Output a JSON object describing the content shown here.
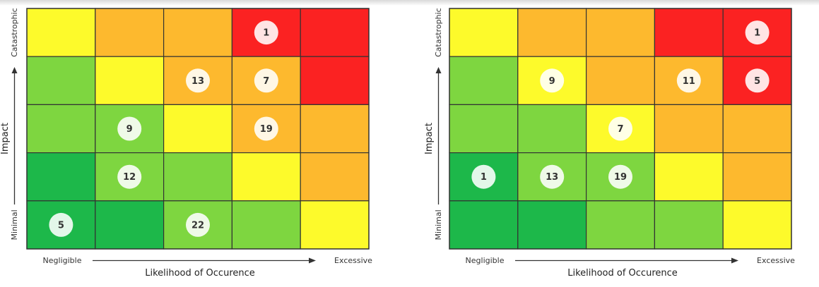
{
  "colors": {
    "dark_green": "#1db84a",
    "green": "#7ed640",
    "yellow": "#fdfa2b",
    "orange": "#fdb92e",
    "red": "#fb2222"
  },
  "chart_data": [
    {
      "type": "heatmap",
      "title": "",
      "xlabel": "Likelihood of Occurence",
      "ylabel": "Impact",
      "x_start_label": "Negligible",
      "x_end_label": "Excessive",
      "y_top_label": "Catastrophic",
      "y_bottom_label": "Minimal",
      "grid_colors": [
        [
          "yellow",
          "orange",
          "orange",
          "red",
          "red"
        ],
        [
          "green",
          "yellow",
          "orange",
          "orange",
          "red"
        ],
        [
          "green",
          "green",
          "yellow",
          "orange",
          "orange"
        ],
        [
          "dark_green",
          "green",
          "green",
          "yellow",
          "orange"
        ],
        [
          "dark_green",
          "dark_green",
          "green",
          "green",
          "yellow"
        ]
      ],
      "badges": [
        {
          "row": 0,
          "col": 3,
          "value": "1"
        },
        {
          "row": 1,
          "col": 2,
          "value": "13"
        },
        {
          "row": 1,
          "col": 3,
          "value": "7"
        },
        {
          "row": 2,
          "col": 1,
          "value": "9"
        },
        {
          "row": 2,
          "col": 3,
          "value": "19"
        },
        {
          "row": 3,
          "col": 1,
          "value": "12"
        },
        {
          "row": 4,
          "col": 0,
          "value": "5"
        },
        {
          "row": 4,
          "col": 2,
          "value": "22"
        }
      ]
    },
    {
      "type": "heatmap",
      "title": "",
      "xlabel": "Likelihood of Occurence",
      "ylabel": "Impact",
      "x_start_label": "Negligible",
      "x_end_label": "Excessive",
      "y_top_label": "Catastrophic",
      "y_bottom_label": "Minimal",
      "grid_colors": [
        [
          "yellow",
          "orange",
          "orange",
          "red",
          "red"
        ],
        [
          "green",
          "yellow",
          "orange",
          "orange",
          "red"
        ],
        [
          "green",
          "green",
          "yellow",
          "orange",
          "orange"
        ],
        [
          "dark_green",
          "green",
          "green",
          "yellow",
          "orange"
        ],
        [
          "dark_green",
          "dark_green",
          "green",
          "green",
          "yellow"
        ]
      ],
      "badges": [
        {
          "row": 0,
          "col": 4,
          "value": "1"
        },
        {
          "row": 1,
          "col": 1,
          "value": "9"
        },
        {
          "row": 1,
          "col": 3,
          "value": "11"
        },
        {
          "row": 1,
          "col": 4,
          "value": "5"
        },
        {
          "row": 2,
          "col": 2,
          "value": "7"
        },
        {
          "row": 3,
          "col": 0,
          "value": "1"
        },
        {
          "row": 3,
          "col": 1,
          "value": "13"
        },
        {
          "row": 3,
          "col": 2,
          "value": "19"
        }
      ]
    }
  ]
}
